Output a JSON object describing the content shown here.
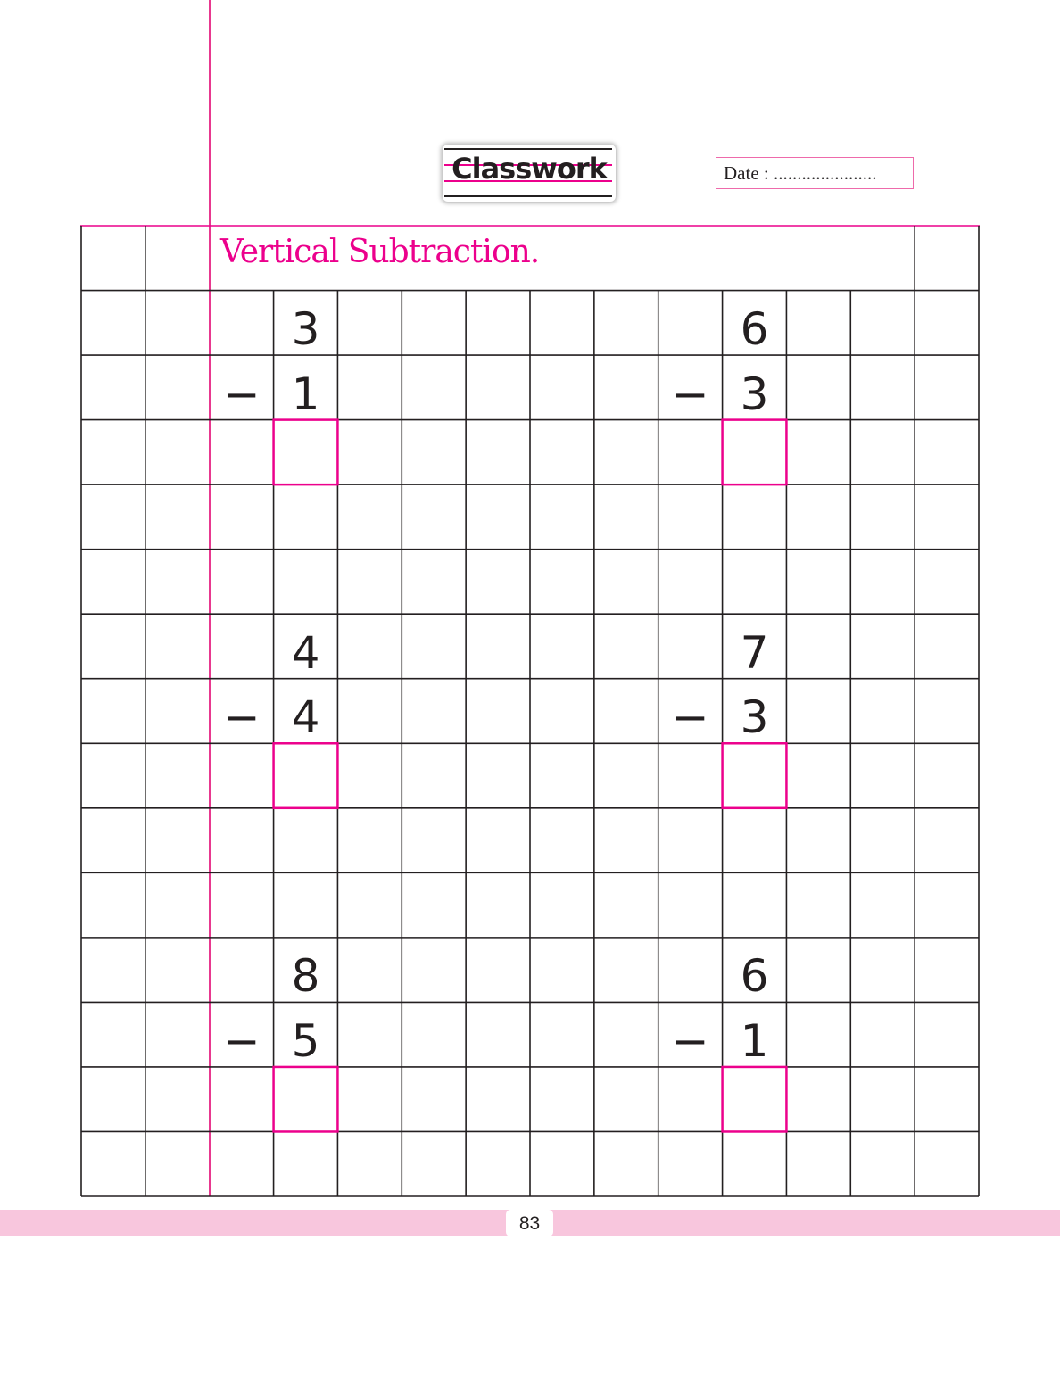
{
  "header": {
    "badge_label": "Classwork",
    "date_label": "Date : ......................"
  },
  "worksheet": {
    "title": "Vertical Subtraction.",
    "operator": "−",
    "problems": [
      {
        "top": "3",
        "bottom": "1"
      },
      {
        "top": "6",
        "bottom": "3"
      },
      {
        "top": "4",
        "bottom": "4"
      },
      {
        "top": "7",
        "bottom": "3"
      },
      {
        "top": "8",
        "bottom": "5"
      },
      {
        "top": "6",
        "bottom": "1"
      }
    ]
  },
  "footer": {
    "page_number": "83"
  },
  "colors": {
    "accent": "#ec008c",
    "grid": "#231f20",
    "footer_band": "#f8c6dd"
  }
}
